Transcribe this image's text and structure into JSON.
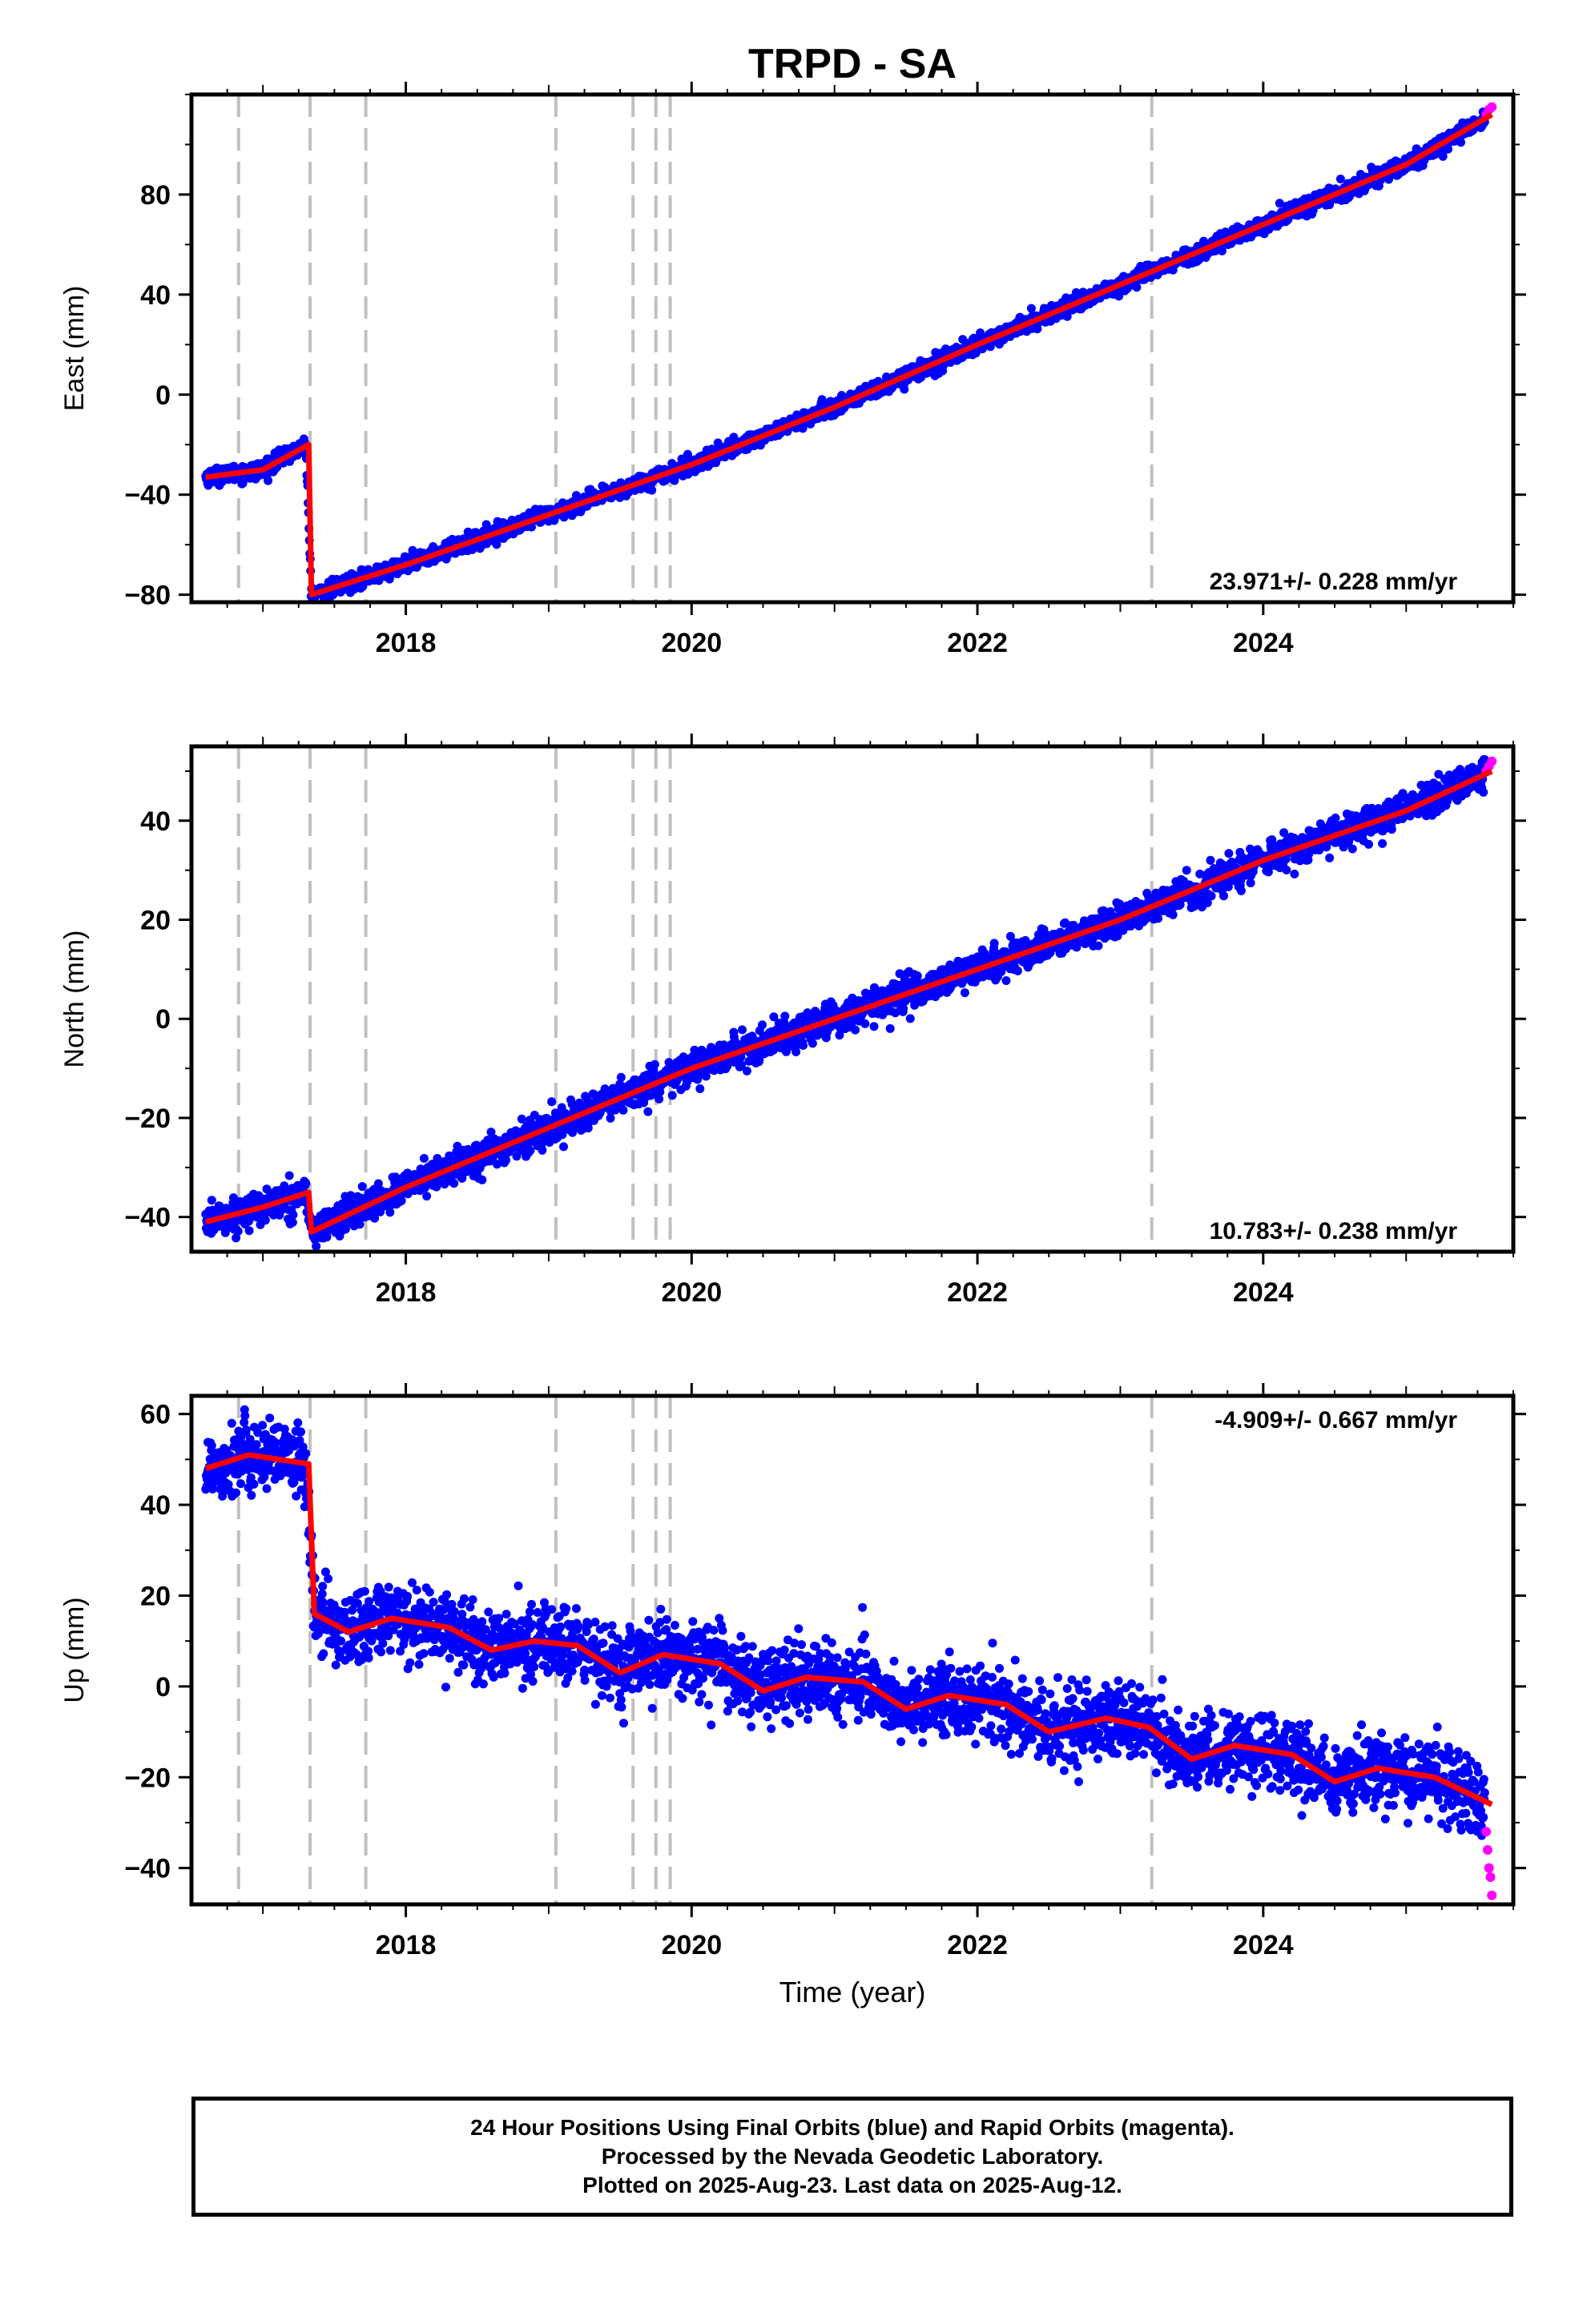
{
  "figure": {
    "title": "TRPD - SA",
    "xlabel": "Time (year)",
    "xticks": [
      2018,
      2020,
      2022,
      2024
    ],
    "xlim": [
      2016.5,
      2025.75
    ],
    "epochs": [
      2016.83,
      2017.33,
      2017.72,
      2019.05,
      2019.59,
      2019.75,
      2019.85,
      2023.22
    ],
    "colors": {
      "final": "#0000ff",
      "rapid": "#ff00ff",
      "model": "#ff0000",
      "epoch": "#c0c0c0"
    }
  },
  "chart_data": [
    {
      "type": "scatter",
      "component": "East",
      "ylabel": "East (mm)",
      "ylim": [
        -83,
        120
      ],
      "yticks": [
        -80,
        -40,
        0,
        40,
        80
      ],
      "rate_label": "23.971+/- 0.228 mm/yr",
      "series": [
        {
          "name": "Final Orbits (blue)",
          "color": "#0000ff",
          "x": [
            2016.6,
            2017.0,
            2017.3,
            2017.34,
            2018.0,
            2019.0,
            2020.0,
            2021.0,
            2022.0,
            2023.0,
            2024.0,
            2025.0,
            2025.55
          ],
          "y": [
            -33,
            -30,
            -20,
            -80,
            -68,
            -48,
            -28,
            -5,
            20,
            44,
            68,
            92,
            110
          ]
        },
        {
          "name": "Rapid Orbits (magenta)",
          "color": "#ff00ff",
          "x": [
            2025.56,
            2025.58,
            2025.6
          ],
          "y": [
            112,
            114,
            115
          ]
        },
        {
          "name": "Model",
          "color": "#ff0000",
          "x": [
            2016.6,
            2017.0,
            2017.32,
            2017.34,
            2018.0,
            2019.0,
            2020.0,
            2021.0,
            2022.0,
            2023.0,
            2024.0,
            2025.0,
            2025.6
          ],
          "y": [
            -33,
            -30,
            -20,
            -80,
            -68,
            -48,
            -28,
            -5,
            20,
            44,
            68,
            92,
            112
          ]
        }
      ]
    },
    {
      "type": "scatter",
      "component": "North",
      "ylabel": "North (mm)",
      "ylim": [
        -47,
        55
      ],
      "yticks": [
        -40,
        -20,
        0,
        20,
        40
      ],
      "rate_label": "10.783+/- 0.238 mm/yr",
      "series": [
        {
          "name": "Final Orbits (blue)",
          "color": "#0000ff",
          "x": [
            2016.6,
            2017.0,
            2017.3,
            2017.34,
            2018.0,
            2019.0,
            2020.0,
            2021.0,
            2022.0,
            2023.0,
            2024.0,
            2025.0,
            2025.55
          ],
          "y": [
            -41,
            -38,
            -35,
            -43,
            -34,
            -22,
            -10,
            0,
            10,
            20,
            32,
            42,
            50
          ]
        },
        {
          "name": "Rapid Orbits (magenta)",
          "color": "#ff00ff",
          "x": [
            2025.56,
            2025.58,
            2025.6
          ],
          "y": [
            50,
            51,
            52
          ]
        },
        {
          "name": "Model",
          "color": "#ff0000",
          "x": [
            2016.6,
            2017.0,
            2017.32,
            2017.34,
            2018.0,
            2019.0,
            2020.0,
            2021.0,
            2022.0,
            2023.0,
            2024.0,
            2025.0,
            2025.6
          ],
          "y": [
            -41,
            -38,
            -35,
            -43,
            -34,
            -22,
            -10,
            0,
            10,
            20,
            32,
            42,
            50
          ]
        }
      ]
    },
    {
      "type": "scatter",
      "component": "Up",
      "ylabel": "Up (mm)",
      "ylim": [
        -48,
        64
      ],
      "yticks": [
        -40,
        -20,
        0,
        20,
        40,
        60
      ],
      "rate_label": "-4.909+/- 0.667 mm/yr",
      "series": [
        {
          "name": "Final Orbits (blue)",
          "color": "#0000ff",
          "x": [
            2016.6,
            2016.9,
            2017.3,
            2017.36,
            2017.6,
            2017.9,
            2018.3,
            2018.6,
            2018.9,
            2019.2,
            2019.5,
            2019.8,
            2020.2,
            2020.5,
            2020.8,
            2021.2,
            2021.5,
            2021.8,
            2022.2,
            2022.5,
            2022.9,
            2023.2,
            2023.5,
            2023.8,
            2024.2,
            2024.5,
            2024.8,
            2025.2,
            2025.55
          ],
          "y": [
            48,
            51,
            49,
            16,
            12,
            15,
            13,
            8,
            10,
            9,
            3,
            7,
            5,
            -1,
            2,
            1,
            -5,
            -2,
            -4,
            -10,
            -7,
            -9,
            -16,
            -13,
            -15,
            -21,
            -18,
            -20,
            -26
          ]
        },
        {
          "name": "Rapid Orbits (magenta)",
          "color": "#ff00ff",
          "x": [
            2025.56,
            2025.57,
            2025.58,
            2025.59,
            2025.6
          ],
          "y": [
            -32,
            -36,
            -40,
            -42,
            -46
          ]
        },
        {
          "name": "Model",
          "color": "#ff0000",
          "x": [
            2016.6,
            2016.9,
            2017.32,
            2017.36,
            2017.6,
            2017.9,
            2018.3,
            2018.6,
            2018.9,
            2019.2,
            2019.5,
            2019.8,
            2020.2,
            2020.5,
            2020.8,
            2021.2,
            2021.5,
            2021.8,
            2022.2,
            2022.5,
            2022.9,
            2023.2,
            2023.5,
            2023.8,
            2024.2,
            2024.5,
            2024.8,
            2025.2,
            2025.6
          ],
          "y": [
            48,
            51,
            49,
            16,
            12,
            15,
            13,
            8,
            10,
            9,
            3,
            7,
            5,
            -1,
            2,
            1,
            -5,
            -2,
            -4,
            -10,
            -7,
            -9,
            -16,
            -13,
            -15,
            -21,
            -18,
            -20,
            -26
          ]
        }
      ]
    }
  ],
  "legend": {
    "line1": "24 Hour Positions Using Final Orbits (blue) and Rapid Orbits (magenta).",
    "line2": "Processed by the Nevada Geodetic Laboratory.",
    "line3": "Plotted on 2025-Aug-23. Last data on 2025-Aug-12."
  }
}
